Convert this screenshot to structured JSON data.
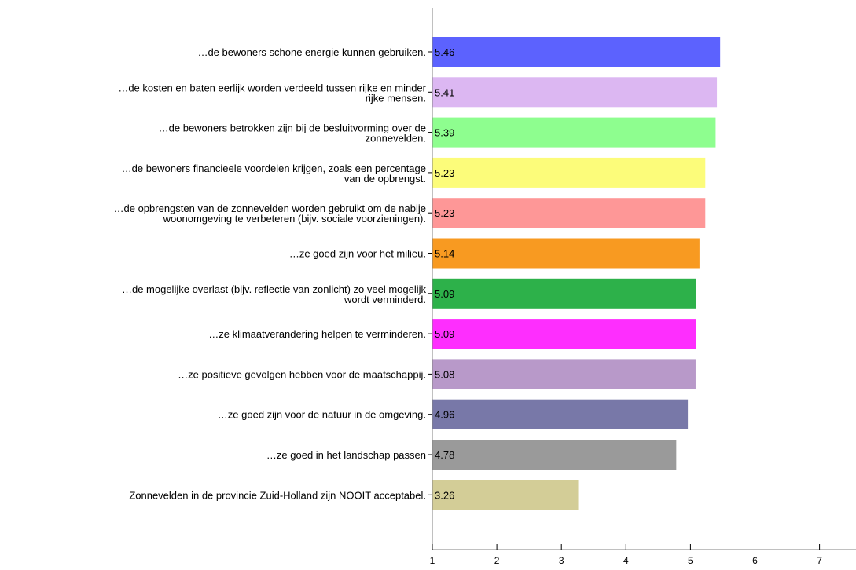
{
  "chart_data": {
    "type": "bar",
    "orientation": "horizontal",
    "title": "",
    "xlabel": "",
    "ylabel": "",
    "xlim": [
      1,
      7
    ],
    "xticks": [
      1,
      2,
      3,
      4,
      5,
      6,
      7
    ],
    "grid": false,
    "categories": [
      [
        "…de bewoners schone energie kunnen gebruiken."
      ],
      [
        "…de kosten en baten eerlijk worden verdeeld tussen rijke en minder",
        "rijke mensen."
      ],
      [
        "…de bewoners betrokken zijn bij de besluitvorming over de",
        "zonnevelden."
      ],
      [
        "…de bewoners financieele voordelen krijgen, zoals een percentage",
        "van de opbrengst."
      ],
      [
        "…de opbrengsten van de zonnevelden worden gebruikt om de nabije",
        "woonomgeving te verbeteren (bijv. sociale voorzieningen)."
      ],
      [
        "…ze goed zijn voor het milieu."
      ],
      [
        "…de mogelijke overlast (bijv. reflectie van zonlicht) zo veel mogelijk",
        "wordt verminderd."
      ],
      [
        "…ze klimaatverandering helpen te verminderen."
      ],
      [
        "…ze positieve gevolgen hebben voor de maatschappij."
      ],
      [
        "…ze goed zijn voor de natuur in de omgeving."
      ],
      [
        "…ze goed in het landschap passen"
      ],
      [
        "Zonnevelden in de provincie Zuid-Holland zijn NOOIT acceptabel."
      ]
    ],
    "values": [
      5.46,
      5.41,
      5.39,
      5.23,
      5.23,
      5.14,
      5.09,
      5.09,
      5.08,
      4.96,
      4.78,
      3.26
    ],
    "value_labels": [
      "5.46",
      "5.41",
      "5.39",
      "5.23",
      "5.23",
      "5.14",
      "5.09",
      "5.09",
      "5.08",
      "4.96",
      "4.78",
      "3.26"
    ],
    "colors": [
      "#5c62fe",
      "#dcb7f2",
      "#8efe8f",
      "#fcfc7a",
      "#fe9797",
      "#f89a21",
      "#2db14a",
      "#fe2efe",
      "#b899c9",
      "#7878a8",
      "#9a9a9a",
      "#d3cd97"
    ]
  }
}
